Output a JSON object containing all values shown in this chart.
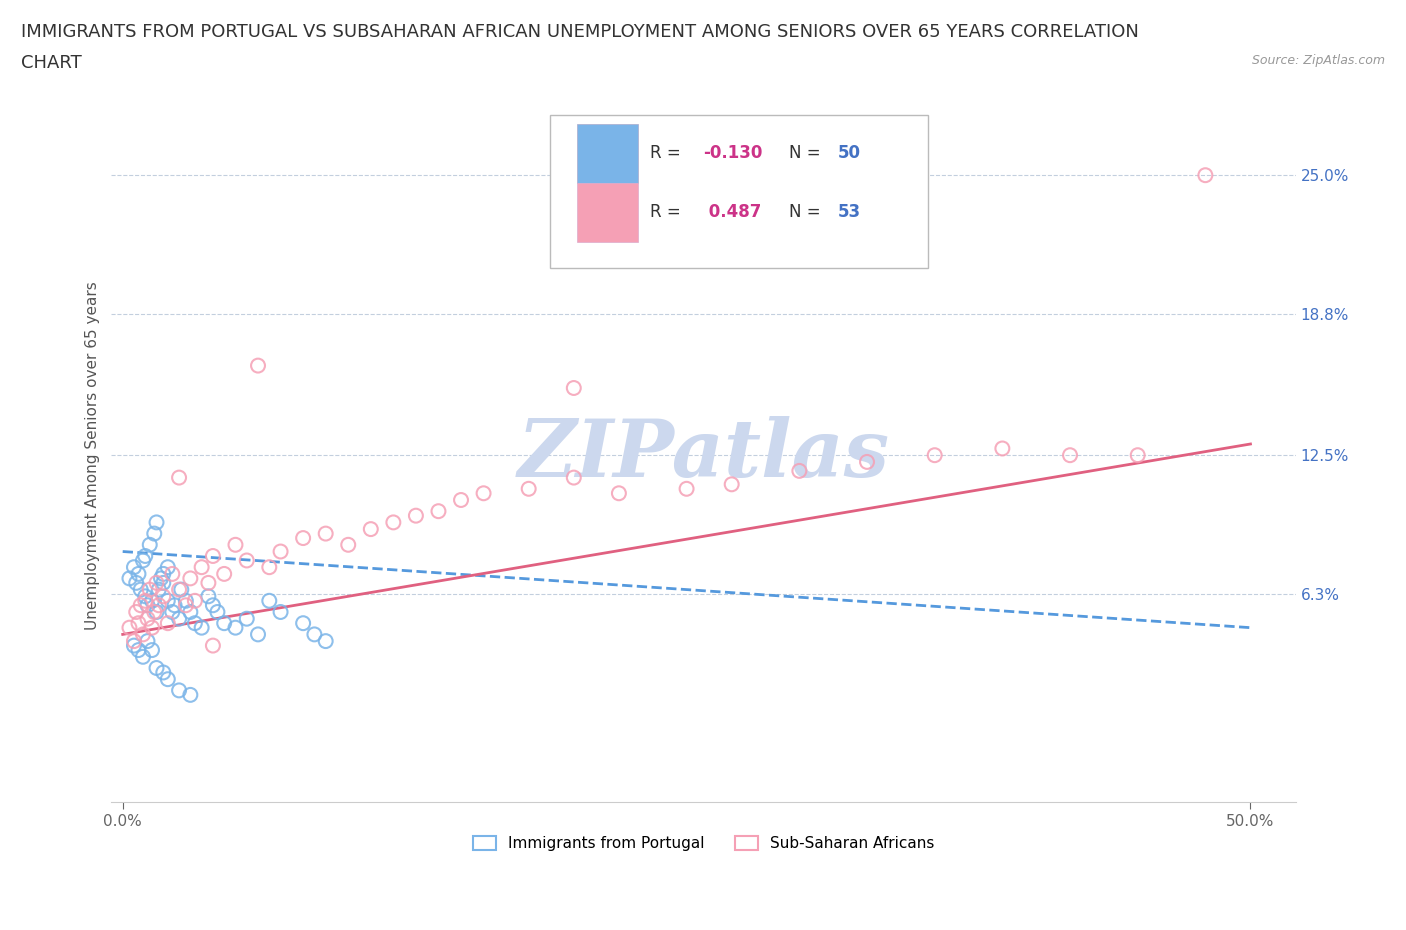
{
  "title_line1": "IMMIGRANTS FROM PORTUGAL VS SUBSAHARAN AFRICAN UNEMPLOYMENT AMONG SENIORS OVER 65 YEARS CORRELATION",
  "title_line2": "CHART",
  "source_text": "Source: ZipAtlas.com",
  "ylabel": "Unemployment Among Seniors over 65 years",
  "xlim": [
    -0.005,
    0.52
  ],
  "ylim": [
    -0.03,
    0.28
  ],
  "xtick_positions": [
    0.0,
    0.5
  ],
  "xtick_labels": [
    "0.0%",
    "50.0%"
  ],
  "ytick_values": [
    0.063,
    0.125,
    0.188,
    0.25
  ],
  "ytick_labels": [
    "6.3%",
    "12.5%",
    "18.8%",
    "25.0%"
  ],
  "hline_values": [
    0.063,
    0.125,
    0.188,
    0.25
  ],
  "series1_color": "#7ab4e8",
  "series2_color": "#f5a0b5",
  "trendline1_color": "#5599dd",
  "trendline2_color": "#e06080",
  "series1_label": "Immigrants from Portugal",
  "series2_label": "Sub-Saharan Africans",
  "series1_R": -0.13,
  "series1_N": 50,
  "series2_R": 0.487,
  "series2_N": 53,
  "watermark": "ZIPatlas",
  "watermark_color": "#ccd8ee",
  "title_fontsize": 13,
  "axis_label_fontsize": 11,
  "tick_fontsize": 11,
  "source_fontsize": 9,
  "background_color": "#ffffff",
  "portugal_x": [
    0.003,
    0.005,
    0.006,
    0.007,
    0.008,
    0.009,
    0.01,
    0.01,
    0.011,
    0.012,
    0.013,
    0.014,
    0.015,
    0.015,
    0.016,
    0.017,
    0.018,
    0.018,
    0.02,
    0.02,
    0.022,
    0.023,
    0.025,
    0.026,
    0.028,
    0.03,
    0.032,
    0.035,
    0.038,
    0.04,
    0.042,
    0.045,
    0.05,
    0.055,
    0.06,
    0.065,
    0.07,
    0.08,
    0.085,
    0.09,
    0.005,
    0.007,
    0.009,
    0.011,
    0.013,
    0.015,
    0.018,
    0.02,
    0.025,
    0.03
  ],
  "portugal_y": [
    0.07,
    0.075,
    0.068,
    0.072,
    0.065,
    0.078,
    0.08,
    0.062,
    0.058,
    0.085,
    0.06,
    0.09,
    0.055,
    0.095,
    0.065,
    0.07,
    0.068,
    0.072,
    0.06,
    0.075,
    0.055,
    0.058,
    0.052,
    0.065,
    0.06,
    0.055,
    0.05,
    0.048,
    0.062,
    0.058,
    0.055,
    0.05,
    0.048,
    0.052,
    0.045,
    0.06,
    0.055,
    0.05,
    0.045,
    0.042,
    0.04,
    0.038,
    0.035,
    0.042,
    0.038,
    0.03,
    0.028,
    0.025,
    0.02,
    0.018
  ],
  "subsaharan_x": [
    0.003,
    0.005,
    0.006,
    0.007,
    0.008,
    0.009,
    0.01,
    0.011,
    0.012,
    0.013,
    0.014,
    0.015,
    0.016,
    0.018,
    0.02,
    0.022,
    0.025,
    0.028,
    0.03,
    0.032,
    0.035,
    0.038,
    0.04,
    0.045,
    0.05,
    0.055,
    0.06,
    0.065,
    0.07,
    0.08,
    0.09,
    0.1,
    0.11,
    0.12,
    0.13,
    0.14,
    0.15,
    0.16,
    0.18,
    0.2,
    0.22,
    0.25,
    0.27,
    0.3,
    0.33,
    0.36,
    0.39,
    0.42,
    0.45,
    0.48,
    0.025,
    0.04,
    0.2
  ],
  "subsaharan_y": [
    0.048,
    0.042,
    0.055,
    0.05,
    0.058,
    0.045,
    0.06,
    0.052,
    0.065,
    0.048,
    0.055,
    0.068,
    0.058,
    0.062,
    0.05,
    0.072,
    0.065,
    0.058,
    0.07,
    0.06,
    0.075,
    0.068,
    0.08,
    0.072,
    0.085,
    0.078,
    0.165,
    0.075,
    0.082,
    0.088,
    0.09,
    0.085,
    0.092,
    0.095,
    0.098,
    0.1,
    0.105,
    0.108,
    0.11,
    0.115,
    0.108,
    0.11,
    0.112,
    0.118,
    0.122,
    0.125,
    0.128,
    0.125,
    0.125,
    0.25,
    0.115,
    0.04,
    0.155
  ],
  "trendline1_x0": 0.0,
  "trendline1_y0": 0.082,
  "trendline1_x1": 0.5,
  "trendline1_y1": 0.048,
  "trendline2_x0": 0.0,
  "trendline2_y0": 0.045,
  "trendline2_x1": 0.5,
  "trendline2_y1": 0.13
}
